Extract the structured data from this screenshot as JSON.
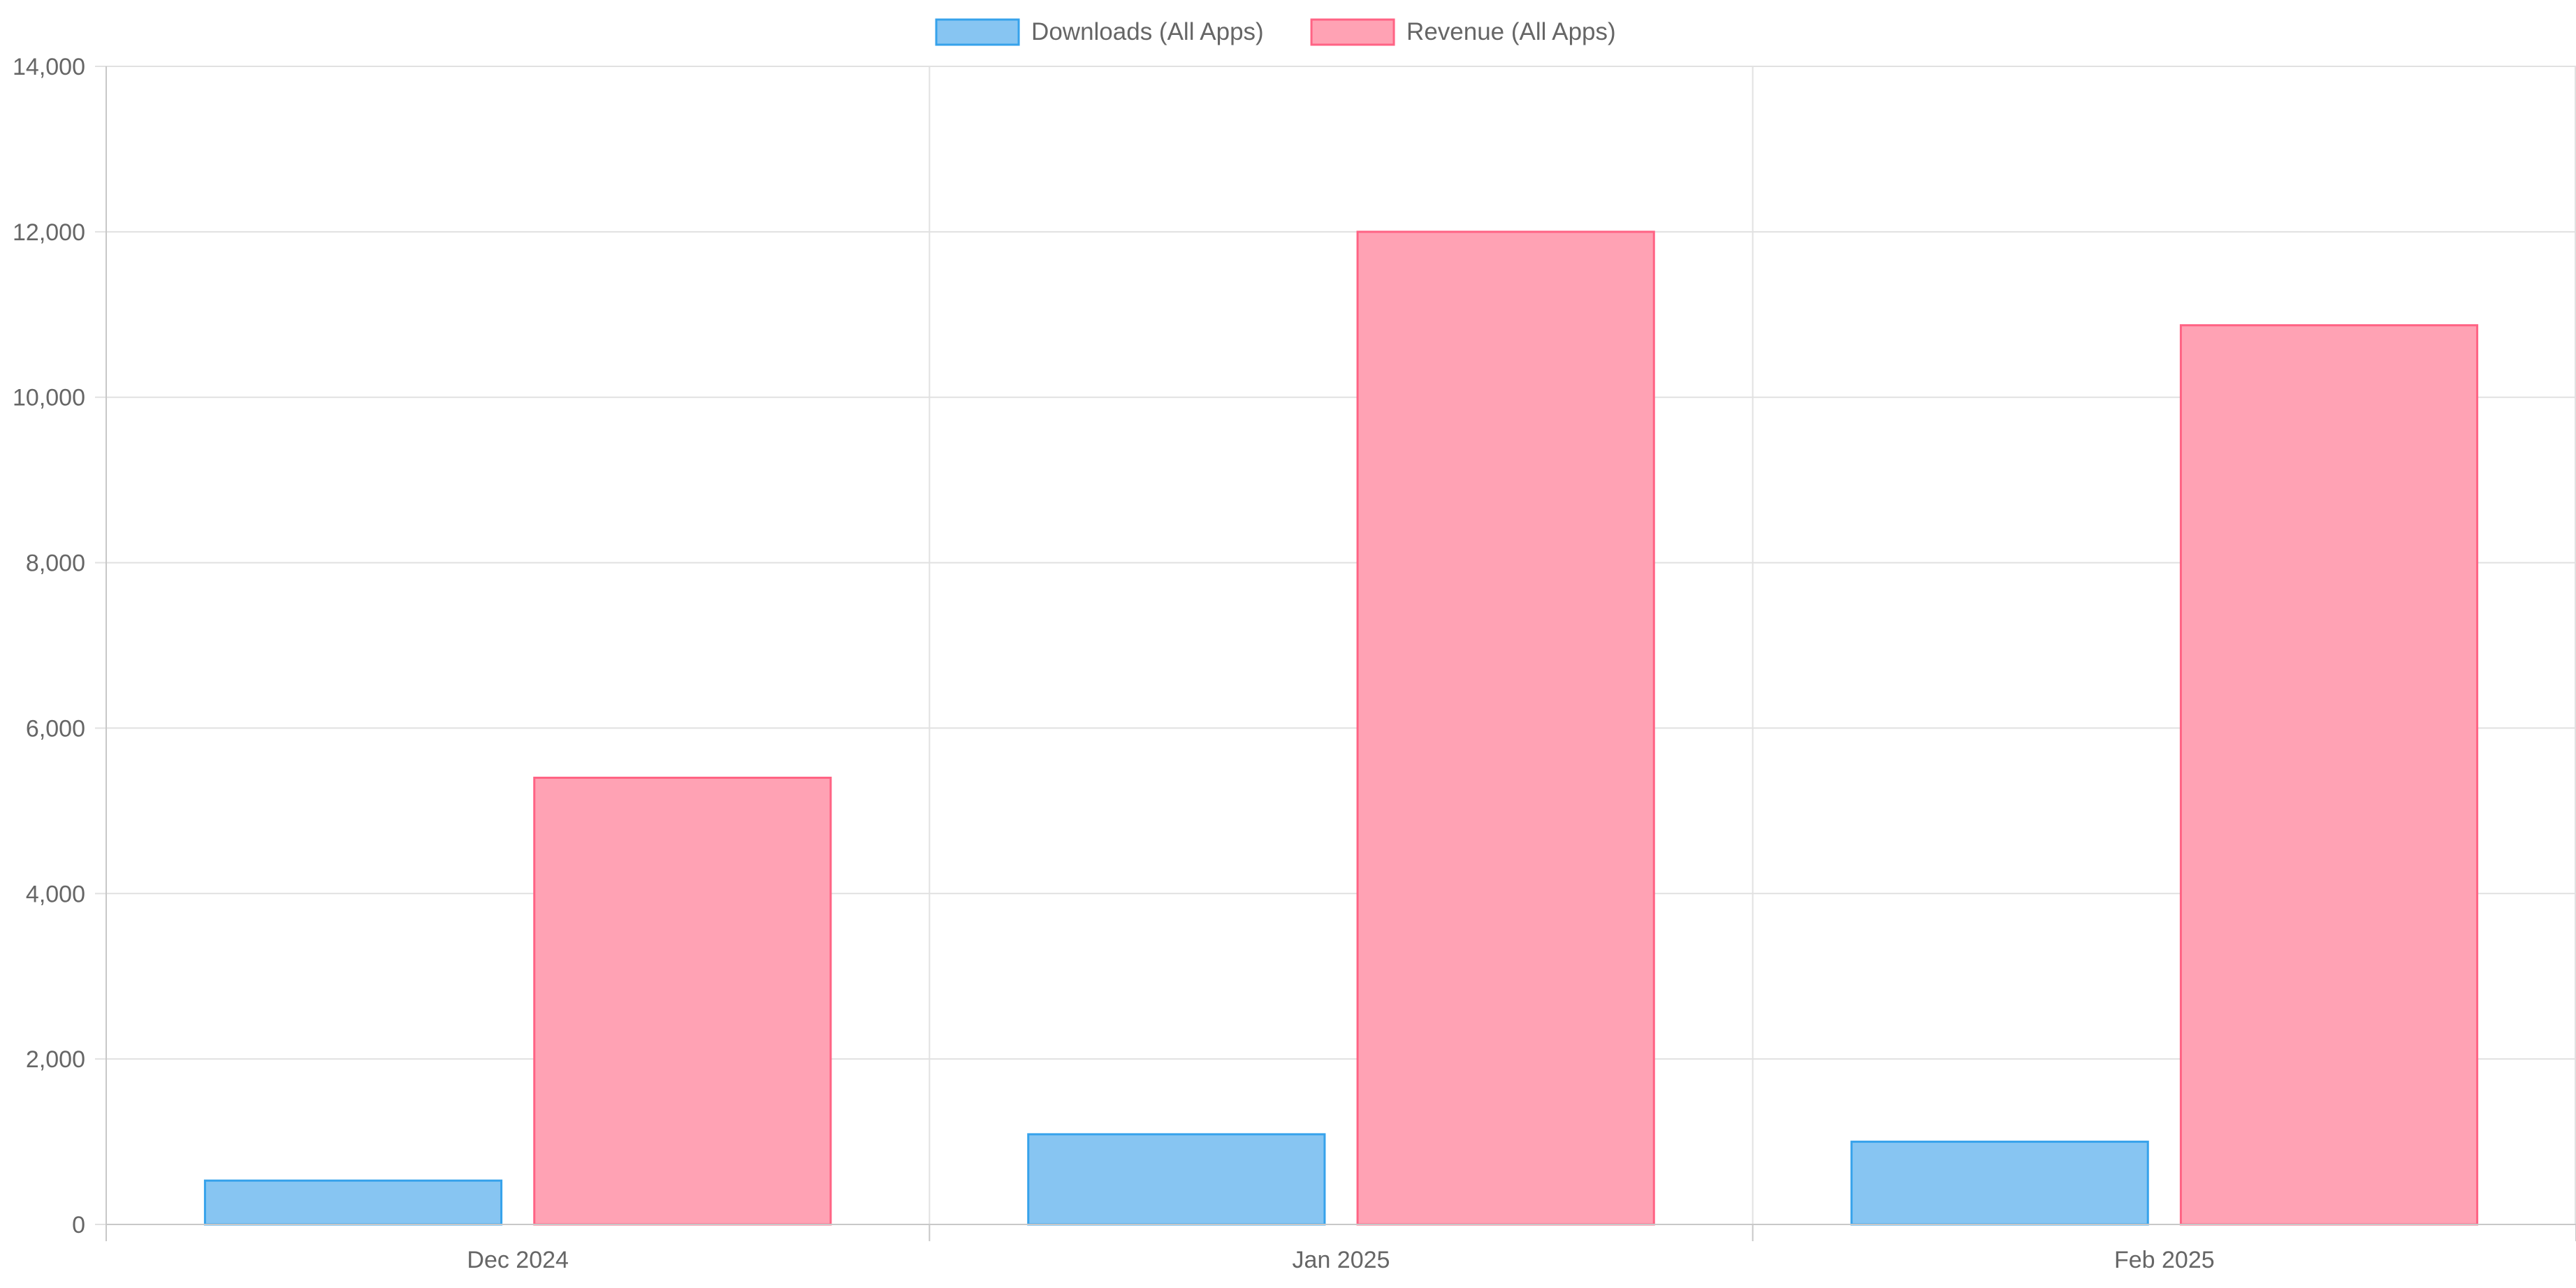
{
  "chart_data": {
    "type": "bar",
    "title": "",
    "xlabel": "",
    "ylabel": "",
    "categories": [
      "Dec 2024",
      "Jan 2025",
      "Feb 2025"
    ],
    "ylim": [
      0,
      14000
    ],
    "yticks": [
      0,
      2000,
      4000,
      6000,
      8000,
      10000,
      12000,
      14000
    ],
    "ytick_labels": [
      "0",
      "2,000",
      "4,000",
      "6,000",
      "8,000",
      "10,000",
      "12,000",
      "14,000"
    ],
    "grid": true,
    "legend_position": "top",
    "series": [
      {
        "name": "Downloads (All Apps)",
        "values": [
          530,
          1090,
          1000
        ],
        "fill": "#87c5f2",
        "stroke": "#36a2eb"
      },
      {
        "name": "Revenue (All Apps)",
        "values": [
          5400,
          12000,
          10870
        ],
        "fill": "#ffa2b4",
        "stroke": "#ff6384"
      }
    ],
    "colors": {
      "grid": "#e1e1e1",
      "axis": "#c8c8c8",
      "text": "#666666"
    }
  }
}
